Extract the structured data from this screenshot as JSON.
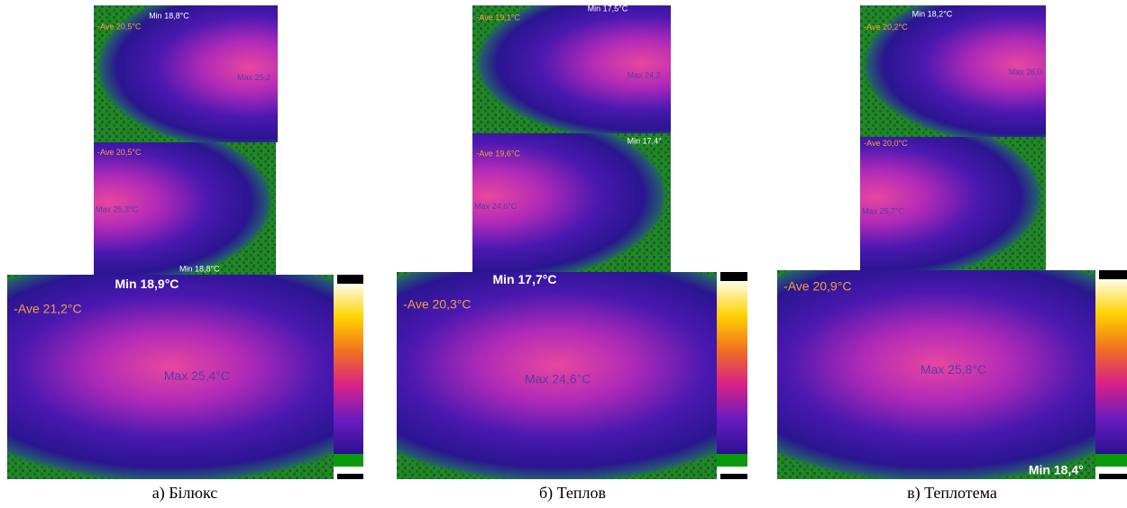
{
  "panels": [
    {
      "top": {
        "min": "Min 18,8°C",
        "ave": "-Ave 20,5°C",
        "max": "Max 25,2"
      },
      "middle": {
        "ave": "-Ave 20,5°C",
        "max": "Max 25,3°C",
        "min": "Min 18,8°C"
      },
      "bottom": {
        "min": "Min 18,9°C",
        "ave": "-Ave 21,2°C",
        "max": "Max 25,4°C"
      },
      "caption": "а) Білюкс"
    },
    {
      "top": {
        "min": "Min 17,5°C",
        "ave": "-Ave 19,1°C",
        "max": "Max 24,2"
      },
      "middle": {
        "min": "Min 17,4°",
        "ave": "-Ave 19,6°C",
        "max": "Max 24,6°C"
      },
      "bottom": {
        "min": "Min 17,7°C",
        "ave": "-Ave 20,3°C",
        "max": "Max 24,6°C"
      },
      "caption": "б) Теплов"
    },
    {
      "top": {
        "min": "Min 18,2°C",
        "ave": "-Ave 20,2°C",
        "max": "Max 26,0"
      },
      "middle": {
        "ave": "-Ave 20,0°C",
        "max": "Max 25,7°C"
      },
      "bottom": {
        "ave": "-Ave 20,9°C",
        "max": "Max 25,8°C",
        "min": "Min 18,4°"
      },
      "caption": "в) Теплотема"
    }
  ]
}
